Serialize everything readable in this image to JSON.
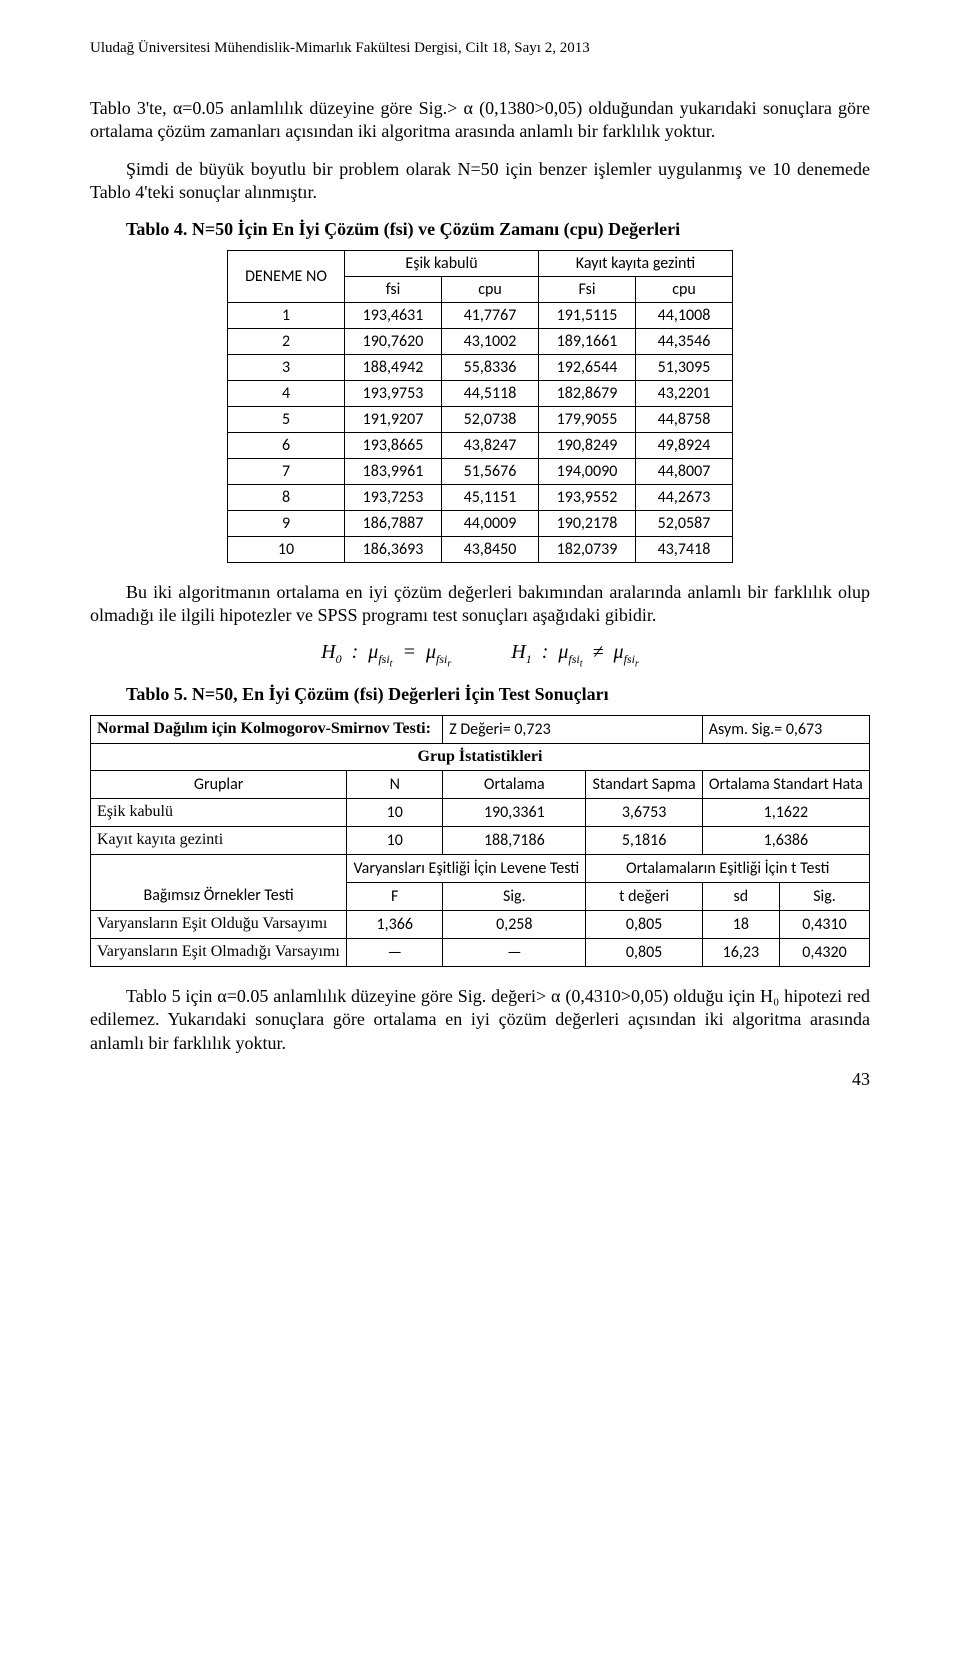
{
  "header": "Uludağ Üniversitesi Mühendislik-Mimarlık Fakültesi Dergisi, Cilt 18, Sayı 2, 2013",
  "para1": "Tablo 3'te, α=0.05 anlamlılık düzeyine göre Sig.> α (0,1380>0,05) olduğundan yukarıdaki sonuçlara göre ortalama çözüm zamanları açısından iki algoritma arasında anlamlı bir farklılık yoktur.",
  "para2": "Şimdi de büyük boyutlu bir problem olarak N=50 için benzer işlemler uygulanmış ve 10 denemede Tablo 4'teki sonuçlar alınmıştır.",
  "table4": {
    "caption": "Tablo 4. N=50 İçin En İyi Çözüm (fsi) ve Çözüm Zamanı (cpu) Değerleri",
    "col_group1": "Eşik kabulü",
    "col_group2": "Kayıt kayıta gezinti",
    "rowhead": "DENEME NO",
    "cols": [
      "fsi",
      "cpu",
      "Fsi",
      "cpu"
    ],
    "rows": [
      [
        "1",
        "193,4631",
        "41,7767",
        "191,5115",
        "44,1008"
      ],
      [
        "2",
        "190,7620",
        "43,1002",
        "189,1661",
        "44,3546"
      ],
      [
        "3",
        "188,4942",
        "55,8336",
        "192,6544",
        "51,3095"
      ],
      [
        "4",
        "193,9753",
        "44,5118",
        "182,8679",
        "43,2201"
      ],
      [
        "5",
        "191,9207",
        "52,0738",
        "179,9055",
        "44,8758"
      ],
      [
        "6",
        "193,8665",
        "43,8247",
        "190,8249",
        "49,8924"
      ],
      [
        "7",
        "183,9961",
        "51,5676",
        "194,0090",
        "44,8007"
      ],
      [
        "8",
        "193,7253",
        "45,1151",
        "193,9552",
        "44,2673"
      ],
      [
        "9",
        "186,7887",
        "44,0009",
        "190,2178",
        "52,0587"
      ],
      [
        "10",
        "186,3693",
        "43,8450",
        "182,0739",
        "43,7418"
      ]
    ]
  },
  "para3": "Bu iki algoritmanın ortalama en iyi çözüm değerleri bakımından aralarında anlamlı bir farklılık olup olmadığı ile ilgili hipotezler ve SPSS programı test sonuçları aşağıdaki gibidir.",
  "formula": {
    "h0_lhs": "H",
    "h0_idx": "0",
    "mu": "μ",
    "fsi_t": "fsi_t",
    "fsi_r": "fsi_r",
    "h1_idx": "1"
  },
  "table5": {
    "caption": "Tablo 5. N=50, En İyi Çözüm (fsi) Değerleri İçin Test Sonuçları",
    "ks_label": "Normal Dağılım için Kolmogorov-Smirnov Testi:",
    "ks_z": "Z Değeri= 0,723",
    "ks_sig": "Asym. Sig.= 0,673",
    "grup_istat": "Grup İstatistikleri",
    "head_gruplar": "Gruplar",
    "head_n": "N",
    "head_ortalama": "Ortalama",
    "head_ss": "Standart Sapma",
    "head_osh": "Ortalama Standart Hata",
    "grp_rows": [
      [
        "Eşik kabulü",
        "10",
        "190,3361",
        "3,6753",
        "1,1622"
      ],
      [
        "Kayıt kayıta gezinti",
        "10",
        "188,7186",
        "5,1816",
        "1,6386"
      ]
    ],
    "levene_label": "Varyansları Eşitliği İçin Levene Testi",
    "ttest_label": "Ortalamaların Eşitliği İçin t Testi",
    "bot_label": "Bağımsız Örnekler Testi",
    "f": "F",
    "sig": "Sig.",
    "t": "t değeri",
    "sd": "sd",
    "sig2": "Sig.",
    "var_eq": "Varyansların Eşit Olduğu Varsayımı",
    "var_neq": "Varyansların Eşit Olmadığı Varsayımı",
    "vrow1": [
      "1,366",
      "0,258",
      "0,805",
      "18",
      "0,4310"
    ],
    "vrow2": [
      "—",
      "—",
      "0,805",
      "16,23",
      "0,4320"
    ]
  },
  "para4": "Tablo 5 için α=0.05 anlamlılık düzeyine göre Sig. değeri> α (0,4310>0,05) olduğu için H₀ hipotezi red edilemez. Yukarıdaki sonuçlara göre ortalama en iyi çözüm değerleri açısından iki algoritma arasında anlamlı bir farklılık yoktur.",
  "page_number": "43"
}
